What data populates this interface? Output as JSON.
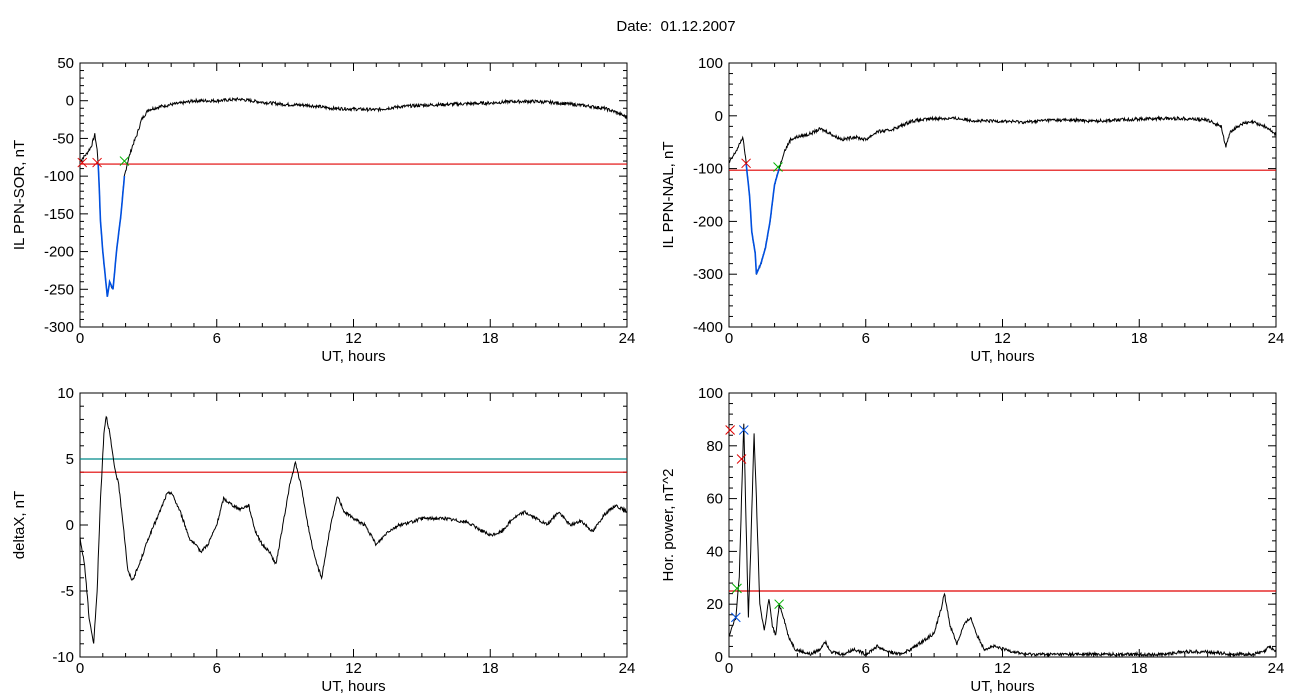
{
  "header": {
    "title": "Date:  01.12.2007"
  },
  "colors": {
    "red": "#e00000",
    "green": "#00b000",
    "blue": "#0050e0",
    "teal": "#008b8b",
    "black": "#000000"
  },
  "chart_data": [
    {
      "id": "p1",
      "type": "line",
      "title": "",
      "xlabel": "UT, hours",
      "ylabel": "IL PPN-SOR, nT",
      "xlim": [
        0,
        24
      ],
      "ylim": [
        -300,
        50
      ],
      "x_ticks": [
        0,
        6,
        12,
        18,
        24
      ],
      "y_ticks": [
        -300,
        -250,
        -200,
        -150,
        -100,
        -50,
        0,
        50
      ],
      "hlines": [
        {
          "y": -84,
          "color": "red"
        }
      ],
      "series": [
        {
          "color": "black",
          "points": [
            [
              0,
              -80
            ],
            [
              0.3,
              -70
            ],
            [
              0.5,
              -60
            ],
            [
              0.65,
              -45
            ],
            [
              0.75,
              -65
            ],
            [
              0.8,
              -84
            ],
            [
              0.85,
              -120
            ],
            [
              0.9,
              -160
            ],
            [
              1.0,
              -200
            ],
            [
              1.1,
              -230
            ],
            [
              1.2,
              -260
            ],
            [
              1.3,
              -240
            ],
            [
              1.45,
              -250
            ],
            [
              1.6,
              -200
            ],
            [
              1.8,
              -150
            ],
            [
              1.95,
              -100
            ],
            [
              2.1,
              -80
            ],
            [
              2.3,
              -60
            ],
            [
              2.5,
              -45
            ],
            [
              2.7,
              -25
            ],
            [
              3.0,
              -12
            ],
            [
              3.5,
              -8
            ],
            [
              4.0,
              -5
            ],
            [
              4.5,
              -3
            ],
            [
              5.0,
              0
            ],
            [
              5.5,
              0
            ],
            [
              6.0,
              0
            ],
            [
              6.5,
              1
            ],
            [
              7.0,
              2
            ],
            [
              7.5,
              0
            ],
            [
              8.0,
              -2
            ],
            [
              9.0,
              -5
            ],
            [
              10.0,
              -6
            ],
            [
              11.0,
              -10
            ],
            [
              12.0,
              -11
            ],
            [
              13.0,
              -12
            ],
            [
              14.0,
              -8
            ],
            [
              15.0,
              -6
            ],
            [
              16.0,
              -5
            ],
            [
              17.0,
              -4
            ],
            [
              18.0,
              -3
            ],
            [
              19.0,
              -1
            ],
            [
              20.0,
              -1
            ],
            [
              21.0,
              -3
            ],
            [
              22.0,
              -6
            ],
            [
              23.0,
              -10
            ],
            [
              23.5,
              -15
            ],
            [
              24.0,
              -22
            ]
          ]
        },
        {
          "color": "blue",
          "points": [
            [
              0.8,
              -84
            ],
            [
              0.85,
              -120
            ],
            [
              0.9,
              -160
            ],
            [
              1.0,
              -200
            ],
            [
              1.1,
              -230
            ],
            [
              1.2,
              -260
            ],
            [
              1.3,
              -240
            ],
            [
              1.45,
              -250
            ],
            [
              1.6,
              -200
            ],
            [
              1.8,
              -150
            ],
            [
              1.95,
              -100
            ]
          ]
        }
      ],
      "markers": [
        {
          "x": 0.1,
          "y": -82,
          "color": "red"
        },
        {
          "x": 0.75,
          "y": -82,
          "color": "red"
        },
        {
          "x": 1.95,
          "y": -80,
          "color": "green"
        }
      ]
    },
    {
      "id": "p2",
      "type": "line",
      "title": "",
      "xlabel": "UT, hours",
      "ylabel": "IL PPN-NAL, nT",
      "xlim": [
        0,
        24
      ],
      "ylim": [
        -400,
        100
      ],
      "x_ticks": [
        0,
        6,
        12,
        18,
        24
      ],
      "y_ticks": [
        -400,
        -300,
        -200,
        -100,
        0,
        100
      ],
      "hlines": [
        {
          "y": -103,
          "color": "red"
        }
      ],
      "series": [
        {
          "color": "black",
          "points": [
            [
              0,
              -90
            ],
            [
              0.2,
              -75
            ],
            [
              0.4,
              -60
            ],
            [
              0.6,
              -40
            ],
            [
              0.7,
              -70
            ],
            [
              0.75,
              -90
            ],
            [
              0.9,
              -150
            ],
            [
              1.0,
              -220
            ],
            [
              1.15,
              -260
            ],
            [
              1.2,
              -300
            ],
            [
              1.4,
              -280
            ],
            [
              1.6,
              -250
            ],
            [
              1.8,
              -200
            ],
            [
              2.0,
              -130
            ],
            [
              2.2,
              -100
            ],
            [
              2.4,
              -70
            ],
            [
              2.7,
              -45
            ],
            [
              3.0,
              -40
            ],
            [
              3.5,
              -35
            ],
            [
              4.0,
              -25
            ],
            [
              4.3,
              -30
            ],
            [
              4.7,
              -40
            ],
            [
              5.0,
              -45
            ],
            [
              5.5,
              -40
            ],
            [
              6.0,
              -45
            ],
            [
              6.5,
              -30
            ],
            [
              7.0,
              -28
            ],
            [
              7.5,
              -20
            ],
            [
              8.0,
              -10
            ],
            [
              9.0,
              -5
            ],
            [
              10.0,
              -5
            ],
            [
              11.0,
              -10
            ],
            [
              12.0,
              -10
            ],
            [
              13.0,
              -12
            ],
            [
              14.0,
              -8
            ],
            [
              15.0,
              -8
            ],
            [
              16.0,
              -10
            ],
            [
              17.0,
              -8
            ],
            [
              18.0,
              -6
            ],
            [
              19.0,
              -5
            ],
            [
              20.0,
              -5
            ],
            [
              21.0,
              -8
            ],
            [
              21.6,
              -20
            ],
            [
              21.8,
              -60
            ],
            [
              22.0,
              -30
            ],
            [
              22.5,
              -15
            ],
            [
              23.0,
              -12
            ],
            [
              23.5,
              -20
            ],
            [
              24.0,
              -35
            ]
          ]
        },
        {
          "color": "blue",
          "points": [
            [
              0.75,
              -90
            ],
            [
              0.9,
              -150
            ],
            [
              1.0,
              -220
            ],
            [
              1.15,
              -260
            ],
            [
              1.2,
              -300
            ],
            [
              1.4,
              -280
            ],
            [
              1.6,
              -250
            ],
            [
              1.8,
              -200
            ],
            [
              2.0,
              -130
            ],
            [
              2.2,
              -100
            ]
          ]
        }
      ],
      "markers": [
        {
          "x": 0.75,
          "y": -90,
          "color": "red"
        },
        {
          "x": 2.15,
          "y": -97,
          "color": "green"
        }
      ]
    },
    {
      "id": "p3",
      "type": "line",
      "title": "",
      "xlabel": "UT, hours",
      "ylabel": "deltaX, nT",
      "xlim": [
        0,
        24
      ],
      "ylim": [
        -10,
        10
      ],
      "x_ticks": [
        0,
        6,
        12,
        18,
        24
      ],
      "y_ticks": [
        -10,
        -5,
        0,
        5,
        10
      ],
      "hlines": [
        {
          "y": 5.0,
          "color": "teal"
        },
        {
          "y": 4.0,
          "color": "red"
        }
      ],
      "series": [
        {
          "color": "black",
          "points": [
            [
              0,
              -1
            ],
            [
              0.2,
              -3
            ],
            [
              0.4,
              -7
            ],
            [
              0.6,
              -9
            ],
            [
              0.75,
              -5
            ],
            [
              0.9,
              2
            ],
            [
              1.05,
              7
            ],
            [
              1.15,
              8.3
            ],
            [
              1.3,
              7
            ],
            [
              1.5,
              4.5
            ],
            [
              1.7,
              3
            ],
            [
              1.9,
              0
            ],
            [
              2.1,
              -3.5
            ],
            [
              2.3,
              -4.2
            ],
            [
              2.6,
              -3
            ],
            [
              3.0,
              -1
            ],
            [
              3.5,
              1
            ],
            [
              3.8,
              2.3
            ],
            [
              4.0,
              2.5
            ],
            [
              4.4,
              1
            ],
            [
              4.8,
              -1
            ],
            [
              5.3,
              -2
            ],
            [
              5.6,
              -1.5
            ],
            [
              6.0,
              0
            ],
            [
              6.3,
              2
            ],
            [
              6.7,
              1.5
            ],
            [
              7.0,
              1.2
            ],
            [
              7.4,
              1.5
            ],
            [
              7.7,
              -0.5
            ],
            [
              8.0,
              -1.5
            ],
            [
              8.3,
              -2
            ],
            [
              8.6,
              -3
            ],
            [
              8.9,
              0
            ],
            [
              9.2,
              3
            ],
            [
              9.45,
              4.7
            ],
            [
              9.7,
              3
            ],
            [
              10.0,
              0
            ],
            [
              10.3,
              -2.5
            ],
            [
              10.6,
              -4
            ],
            [
              11.0,
              0
            ],
            [
              11.3,
              2.2
            ],
            [
              11.6,
              1
            ],
            [
              12.0,
              0.5
            ],
            [
              12.5,
              0
            ],
            [
              13.0,
              -1.5
            ],
            [
              13.5,
              -0.5
            ],
            [
              14.0,
              0
            ],
            [
              14.5,
              0.2
            ],
            [
              15.0,
              0.5
            ],
            [
              16.0,
              0.5
            ],
            [
              17.0,
              0.2
            ],
            [
              18.0,
              -0.8
            ],
            [
              18.5,
              -0.5
            ],
            [
              19.0,
              0.5
            ],
            [
              19.5,
              1
            ],
            [
              20.0,
              0.5
            ],
            [
              20.5,
              0
            ],
            [
              21.0,
              1
            ],
            [
              21.5,
              0
            ],
            [
              22.0,
              0.3
            ],
            [
              22.5,
              -0.5
            ],
            [
              23.0,
              0.8
            ],
            [
              23.5,
              1.5
            ],
            [
              24.0,
              1
            ]
          ]
        }
      ],
      "markers": []
    },
    {
      "id": "p4",
      "type": "line",
      "title": "",
      "xlabel": "UT, hours",
      "ylabel": "Hor. power, nT^2",
      "xlim": [
        0,
        24
      ],
      "ylim": [
        0,
        100
      ],
      "x_ticks": [
        0,
        6,
        12,
        18,
        24
      ],
      "y_ticks": [
        0,
        20,
        40,
        60,
        80,
        100
      ],
      "hlines": [
        {
          "y": 25,
          "color": "red"
        }
      ],
      "series": [
        {
          "color": "black",
          "points": [
            [
              0,
              8
            ],
            [
              0.15,
              12
            ],
            [
              0.3,
              15
            ],
            [
              0.45,
              30
            ],
            [
              0.55,
              60
            ],
            [
              0.65,
              88
            ],
            [
              0.75,
              50
            ],
            [
              0.85,
              15
            ],
            [
              0.95,
              40
            ],
            [
              1.1,
              85
            ],
            [
              1.2,
              60
            ],
            [
              1.35,
              20
            ],
            [
              1.55,
              10
            ],
            [
              1.75,
              22
            ],
            [
              1.9,
              12
            ],
            [
              2.05,
              8
            ],
            [
              2.2,
              20
            ],
            [
              2.4,
              15
            ],
            [
              2.6,
              8
            ],
            [
              2.9,
              3
            ],
            [
              3.2,
              2
            ],
            [
              3.6,
              1
            ],
            [
              4.0,
              3
            ],
            [
              4.2,
              6
            ],
            [
              4.5,
              2
            ],
            [
              5.0,
              1
            ],
            [
              5.5,
              3
            ],
            [
              6.0,
              1
            ],
            [
              6.5,
              4
            ],
            [
              7.0,
              2
            ],
            [
              7.5,
              1
            ],
            [
              8.0,
              3
            ],
            [
              8.5,
              6
            ],
            [
              9.0,
              9
            ],
            [
              9.3,
              18
            ],
            [
              9.45,
              24
            ],
            [
              9.7,
              12
            ],
            [
              10.0,
              5
            ],
            [
              10.3,
              12
            ],
            [
              10.6,
              15
            ],
            [
              10.9,
              8
            ],
            [
              11.2,
              3
            ],
            [
              11.6,
              4
            ],
            [
              12.0,
              3
            ],
            [
              12.5,
              2
            ],
            [
              13.0,
              1
            ],
            [
              14.0,
              1
            ],
            [
              15.0,
              1
            ],
            [
              16.0,
              1
            ],
            [
              17.0,
              1
            ],
            [
              18.0,
              1
            ],
            [
              19.0,
              1
            ],
            [
              20.0,
              2
            ],
            [
              21.0,
              2
            ],
            [
              22.0,
              1
            ],
            [
              23.0,
              1
            ],
            [
              23.5,
              2
            ],
            [
              23.7,
              4
            ],
            [
              24.0,
              2
            ]
          ]
        }
      ],
      "markers": [
        {
          "x": 0.05,
          "y": 86,
          "color": "red"
        },
        {
          "x": 0.3,
          "y": 15,
          "color": "blue"
        },
        {
          "x": 0.35,
          "y": 26,
          "color": "green"
        },
        {
          "x": 0.55,
          "y": 75,
          "color": "red"
        },
        {
          "x": 0.65,
          "y": 86,
          "color": "blue"
        },
        {
          "x": 2.2,
          "y": 20,
          "color": "green"
        }
      ]
    }
  ]
}
